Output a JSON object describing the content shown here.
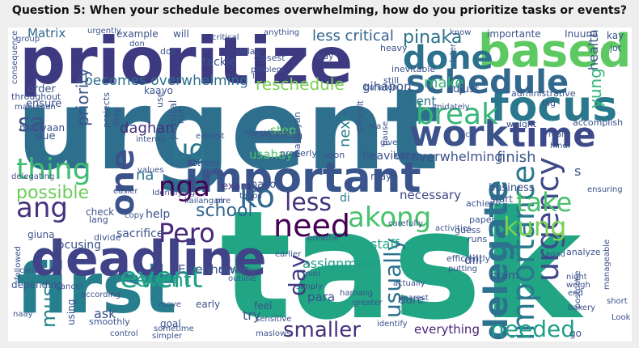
{
  "title": "Question 5: When your schedule becomes overwhelming, how do you prioritize tasks or events?",
  "words": [
    {
      "t": "urgent",
      "c": "#2f6f8e"
    },
    {
      "t": "task",
      "c": "#21a585"
    },
    {
      "t": "prioritize",
      "c": "#3e3a82"
    },
    {
      "t": "first",
      "c": "#277f8e"
    },
    {
      "t": "deadline",
      "c": "#404387"
    },
    {
      "t": "important",
      "c": "#3a548c"
    },
    {
      "t": "based",
      "c": "#5ec962"
    },
    {
      "t": "focus",
      "c": "#2a788e"
    },
    {
      "t": "done",
      "c": "#2c728e"
    },
    {
      "t": "work",
      "c": "#3b528b"
    },
    {
      "t": "schedule",
      "c": "#31688e"
    },
    {
      "t": "time",
      "c": "#3e4989"
    },
    {
      "t": "break",
      "c": "#35b779"
    },
    {
      "t": "need",
      "c": "#440154"
    },
    {
      "t": "akong",
      "c": "#4ac16d"
    },
    {
      "t": "thing",
      "c": "#3fbc73"
    },
    {
      "t": "ang",
      "c": "#46337e"
    },
    {
      "t": "Pero",
      "c": "#482878"
    },
    {
      "t": "event",
      "c": "#1fa187"
    },
    {
      "t": "nga",
      "c": "#440154"
    },
    {
      "t": "ko",
      "c": "#31688e"
    },
    {
      "t": "less",
      "c": "#46337e"
    },
    {
      "t": "one",
      "c": "#3b528b"
    },
    {
      "t": "ug",
      "c": "#2a788e"
    },
    {
      "t": "sa",
      "c": "#3b528b"
    },
    {
      "t": "delegate",
      "c": "#2c728e"
    },
    {
      "t": "importance",
      "c": "#2a788e"
    },
    {
      "t": "urgency",
      "c": "#3e4989"
    },
    {
      "t": "take",
      "c": "#4ac16d"
    },
    {
      "t": "kung",
      "c": "#7ad151"
    },
    {
      "t": "needed",
      "c": "#1f9e89"
    },
    {
      "t": "usually",
      "c": "#2c728e"
    },
    {
      "t": "day",
      "c": "#443983"
    },
    {
      "t": "smaller",
      "c": "#46337e"
    },
    {
      "t": "must",
      "c": "#25848e"
    },
    {
      "t": "pinaka",
      "c": "#2c728e"
    },
    {
      "t": "school",
      "c": "#31688e"
    },
    {
      "t": "possible",
      "c": "#6ccd5a"
    },
    {
      "t": "priority",
      "c": "#3b528b"
    },
    {
      "t": "becomes overwhelming",
      "c": "#2d708e"
    },
    {
      "t": "reschedule",
      "c": "#7ad151"
    },
    {
      "t": "less critical",
      "c": "#33638d"
    },
    {
      "t": "make",
      "c": "#35b779"
    },
    {
      "t": "yung",
      "c": "#35b779"
    },
    {
      "t": "next",
      "c": "#277f8e"
    },
    {
      "t": "finish",
      "c": "#39558c"
    },
    {
      "t": "overwhelming",
      "c": "#3b528b"
    },
    {
      "t": "client",
      "c": "#2d708e"
    },
    {
      "t": "necessary",
      "c": "#3f4788"
    },
    {
      "t": "assignment",
      "c": "#1f9e89"
    },
    {
      "t": "staff",
      "c": "#20a486"
    },
    {
      "t": "everything",
      "c": "#482475"
    },
    {
      "t": "event ",
      "c": "#1fa187"
    },
    {
      "t": "ask",
      "c": "#3b528b"
    },
    {
      "t": "try",
      "c": "#3b528b"
    },
    {
      "t": "help",
      "c": "#3b528b"
    },
    {
      "t": "na",
      "c": "#2a788e"
    },
    {
      "t": "daghan",
      "c": "#46337e"
    },
    {
      "t": "exam",
      "c": "#46337e"
    },
    {
      "t": "nako",
      "c": "#3b528b"
    },
    {
      "t": "usahay",
      "c": "#4ac16d"
    },
    {
      "t": "step",
      "c": "#5ec962"
    },
    {
      "t": "sacrifice",
      "c": "#3b528b"
    },
    {
      "t": "focusing",
      "c": "#3b528b"
    },
    {
      "t": "business",
      "c": "#3b528b"
    },
    {
      "t": "health",
      "c": "#3b528b"
    },
    {
      "t": "Eisenhower",
      "c": "#3b528b"
    },
    {
      "t": "gihapon",
      "c": "#3b528b"
    },
    {
      "t": "Matrix",
      "c": "#31688e"
    },
    {
      "t": "di",
      "c": "#2a788e"
    },
    {
      "t": "s",
      "c": "#3b528b"
    },
    {
      "t": "para",
      "c": "#3b528b"
    },
    {
      "t": "sure",
      "c": "#3b528b"
    },
    {
      "t": "cram",
      "c": "#3b528b"
    },
    {
      "t": "dili",
      "c": "#3b528b"
    },
    {
      "t": "order",
      "c": "#3b528b"
    },
    {
      "t": "ensure",
      "c": "#3b528b"
    },
    {
      "t": "due",
      "c": "#3b528b"
    },
    {
      "t": "adjust",
      "c": "#3b528b"
    },
    {
      "t": "heaviest",
      "c": "#3b528b"
    },
    {
      "t": "kaya",
      "c": "#3b528b"
    },
    {
      "t": "may",
      "c": "#3b528b"
    },
    {
      "t": "start",
      "c": "#3b528b"
    },
    {
      "t": "achieve",
      "c": "#3b528b"
    },
    {
      "t": "paper",
      "c": "#3b528b"
    },
    {
      "t": "guess",
      "c": "#3b528b"
    },
    {
      "t": "runs",
      "c": "#3b528b"
    },
    {
      "t": "check",
      "c": "#3b528b"
    },
    {
      "t": "divide",
      "c": "#3b528b"
    },
    {
      "t": "giuna",
      "c": "#3b528b"
    },
    {
      "t": "lang",
      "c": "#3b528b"
    },
    {
      "t": "tackle",
      "c": "#3b528b"
    },
    {
      "t": "example",
      "c": "#3b528b"
    },
    {
      "t": "will",
      "c": "#3b528b"
    },
    {
      "t": "dos",
      "c": "#3b528b"
    },
    {
      "t": "delay",
      "c": "#3b528b"
    },
    {
      "t": "closest",
      "c": "#3b528b"
    },
    {
      "t": "buy",
      "c": "#3b528b"
    },
    {
      "t": "heavy",
      "c": "#3b528b"
    },
    {
      "t": "inevitable",
      "c": "#3b528b"
    },
    {
      "t": "still",
      "c": "#3b528b"
    },
    {
      "t": "importante",
      "c": "#3b528b"
    },
    {
      "t": "Inuuna",
      "c": "#3b528b"
    },
    {
      "t": "know",
      "c": "#3b528b"
    },
    {
      "t": "later",
      "c": "#3b528b"
    },
    {
      "t": "kay",
      "c": "#3b528b"
    },
    {
      "t": "jot",
      "c": "#3b528b"
    },
    {
      "t": "administrative",
      "c": "#3b528b"
    },
    {
      "t": "big",
      "c": "#3b528b"
    },
    {
      "t": "weight",
      "c": "#3b528b"
    },
    {
      "t": "accomplish",
      "c": "#3b528b"
    },
    {
      "t": "really",
      "c": "#3b528b"
    },
    {
      "t": "hindi",
      "c": "#3b528b"
    },
    {
      "t": "pick",
      "c": "#3b528b"
    },
    {
      "t": "buhaton",
      "c": "#3b528b"
    },
    {
      "t": "imidately",
      "c": "#3b528b"
    },
    {
      "t": "ina",
      "c": "#3b528b"
    },
    {
      "t": "pause",
      "c": "#3b528b"
    },
    {
      "t": "give",
      "c": "#3b528b"
    },
    {
      "t": "difficult",
      "c": "#3b528b"
    },
    {
      "t": "malikayan",
      "c": "#3b528b"
    },
    {
      "t": "operations",
      "c": "#3b528b"
    },
    {
      "t": "masyadong",
      "c": "#3b528b"
    },
    {
      "t": "properly",
      "c": "#3b528b"
    },
    {
      "t": "soon",
      "c": "#3b528b"
    },
    {
      "t": "stress",
      "c": "#3b528b"
    },
    {
      "t": "easiest",
      "c": "#3b528b"
    },
    {
      "t": "physical",
      "c": "#3b528b"
    },
    {
      "t": "kaayo",
      "c": "#3b528b"
    },
    {
      "t": "use",
      "c": "#3b528b"
    },
    {
      "t": "projects",
      "c": "#3b528b"
    },
    {
      "t": "drop",
      "c": "#3b528b"
    },
    {
      "t": "intense",
      "c": "#3b528b"
    },
    {
      "t": "values",
      "c": "#3b528b"
    },
    {
      "t": "easier",
      "c": "#3b528b"
    },
    {
      "t": "Identifying",
      "c": "#3b528b"
    },
    {
      "t": "delegating",
      "c": "#3b528b"
    },
    {
      "t": "mabyaan",
      "c": "#3b528b"
    },
    {
      "t": "mahuman",
      "c": "#3b528b"
    },
    {
      "t": "throughout",
      "c": "#3b528b"
    },
    {
      "t": "consequence",
      "c": "#3b528b"
    },
    {
      "t": "urgently",
      "c": "#3b528b"
    },
    {
      "t": "don",
      "c": "#3b528b"
    },
    {
      "t": "critical",
      "c": "#3b528b"
    },
    {
      "t": "anything",
      "c": "#3b528b"
    },
    {
      "t": "ll",
      "c": "#3b528b"
    },
    {
      "t": "problem",
      "c": "#3b528b"
    },
    {
      "t": "halt",
      "c": "#3b528b"
    },
    {
      "t": "kailangan",
      "c": "#3b528b"
    },
    {
      "t": "nire",
      "c": "#3b528b"
    },
    {
      "t": "tapos",
      "c": "#3b528b"
    },
    {
      "t": "copy",
      "c": "#3b528b"
    },
    {
      "t": "breathe",
      "c": "#3b528b"
    },
    {
      "t": "carefully",
      "c": "#3b528b"
    },
    {
      "t": "activities",
      "c": "#3b528b"
    },
    {
      "t": "earlier",
      "c": "#3b528b"
    },
    {
      "t": "mini",
      "c": "#3b528b"
    },
    {
      "t": "simply",
      "c": "#3b528b"
    },
    {
      "t": "efficiently",
      "c": "#3b528b"
    },
    {
      "t": "putting",
      "c": "#3b528b"
    },
    {
      "t": "analyze",
      "c": "#3b528b"
    },
    {
      "t": "night",
      "c": "#3b528b"
    },
    {
      "t": "weigh",
      "c": "#3b528b"
    },
    {
      "t": "postpone",
      "c": "#3b528b"
    },
    {
      "t": "manageable",
      "c": "#3b528b"
    },
    {
      "t": "end",
      "c": "#3b528b"
    },
    {
      "t": "bakery",
      "c": "#3b528b"
    },
    {
      "t": "short",
      "c": "#3b528b"
    },
    {
      "t": "Look",
      "c": "#3b528b"
    },
    {
      "t": "hamang",
      "c": "#3b528b"
    },
    {
      "t": "actually",
      "c": "#3b528b"
    },
    {
      "t": "nearest",
      "c": "#3b528b"
    },
    {
      "t": "greater",
      "c": "#3b528b"
    },
    {
      "t": "feel",
      "c": "#3b528b"
    },
    {
      "t": "sensitive",
      "c": "#3b528b"
    },
    {
      "t": "maslows",
      "c": "#3b528b"
    },
    {
      "t": "hierarchy",
      "c": "#3b528b"
    },
    {
      "t": "outline",
      "c": "#3b528b"
    },
    {
      "t": "early",
      "c": "#3b528b"
    },
    {
      "t": "move",
      "c": "#3b528b"
    },
    {
      "t": "goal",
      "c": "#3b528b"
    },
    {
      "t": "sometime",
      "c": "#3b528b"
    },
    {
      "t": "simpler",
      "c": "#3b528b"
    },
    {
      "t": "according",
      "c": "#3b528b"
    },
    {
      "t": "Cancel",
      "c": "#3b528b"
    },
    {
      "t": "smoothly",
      "c": "#3b528b"
    },
    {
      "t": "control",
      "c": "#3b528b"
    },
    {
      "t": "using",
      "c": "#3b528b"
    },
    {
      "t": "naay",
      "c": "#3b528b"
    },
    {
      "t": "cant",
      "c": "#3b528b"
    },
    {
      "t": "followed",
      "c": "#3b528b"
    },
    {
      "t": "depending",
      "c": "#3b528b"
    },
    {
      "t": "go",
      "c": "#3b528b"
    },
    {
      "t": "identify",
      "c": "#3b528b"
    },
    {
      "t": "agad",
      "c": "#3b528b"
    },
    {
      "t": "ensuring",
      "c": "#3b528b"
    },
    {
      "t": "group",
      "c": "#3b528b"
    }
  ]
}
